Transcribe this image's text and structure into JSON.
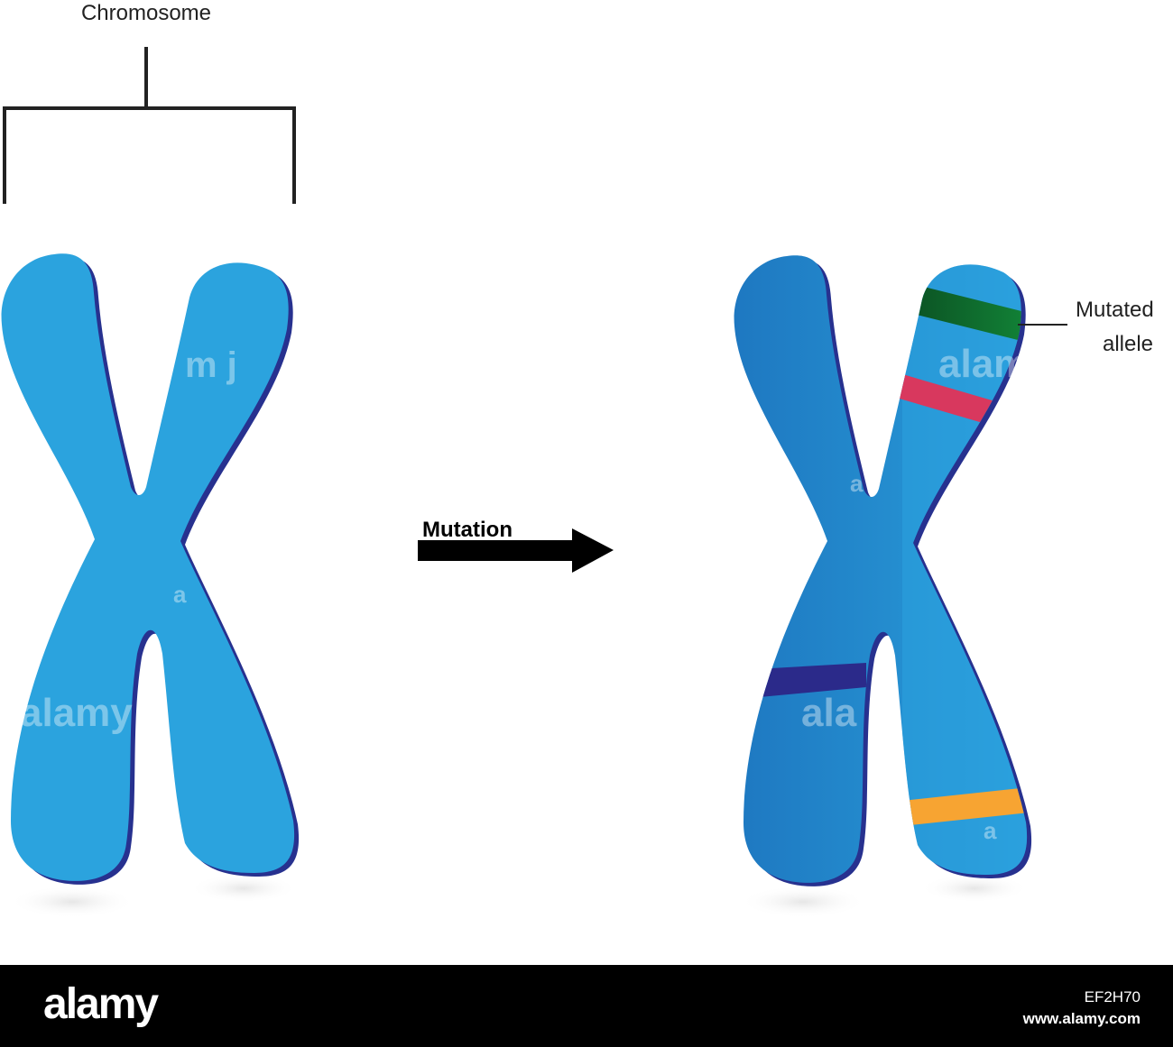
{
  "labels": {
    "chromosome": "Chromosome",
    "mutation": "Mutation",
    "mutated_allele_line1": "Mutated",
    "mutated_allele_line2": "allele"
  },
  "watermark": {
    "text_full": "alamy",
    "text_part1": "m j",
    "text_part2": "alam",
    "text_part3": "ala",
    "text_part4": "a"
  },
  "footer": {
    "logo": "alamy",
    "image_id": "EF2H70",
    "url": "www.alamy.com"
  },
  "colors": {
    "chromosome_plain": "#2ba3de",
    "chromosome_outline": "#27318f",
    "chromosome_dark": "#1e78c1",
    "chromosome_light": "#2a9ad9",
    "band_green": "#0e6b2e",
    "band_pink": "#d8385e",
    "band_indigo": "#2b2a8a",
    "band_orange": "#f7a432"
  },
  "icons": {
    "arrow": "right-arrow-icon",
    "bracket": "bracket-icon",
    "leader": "leader-line-icon"
  }
}
